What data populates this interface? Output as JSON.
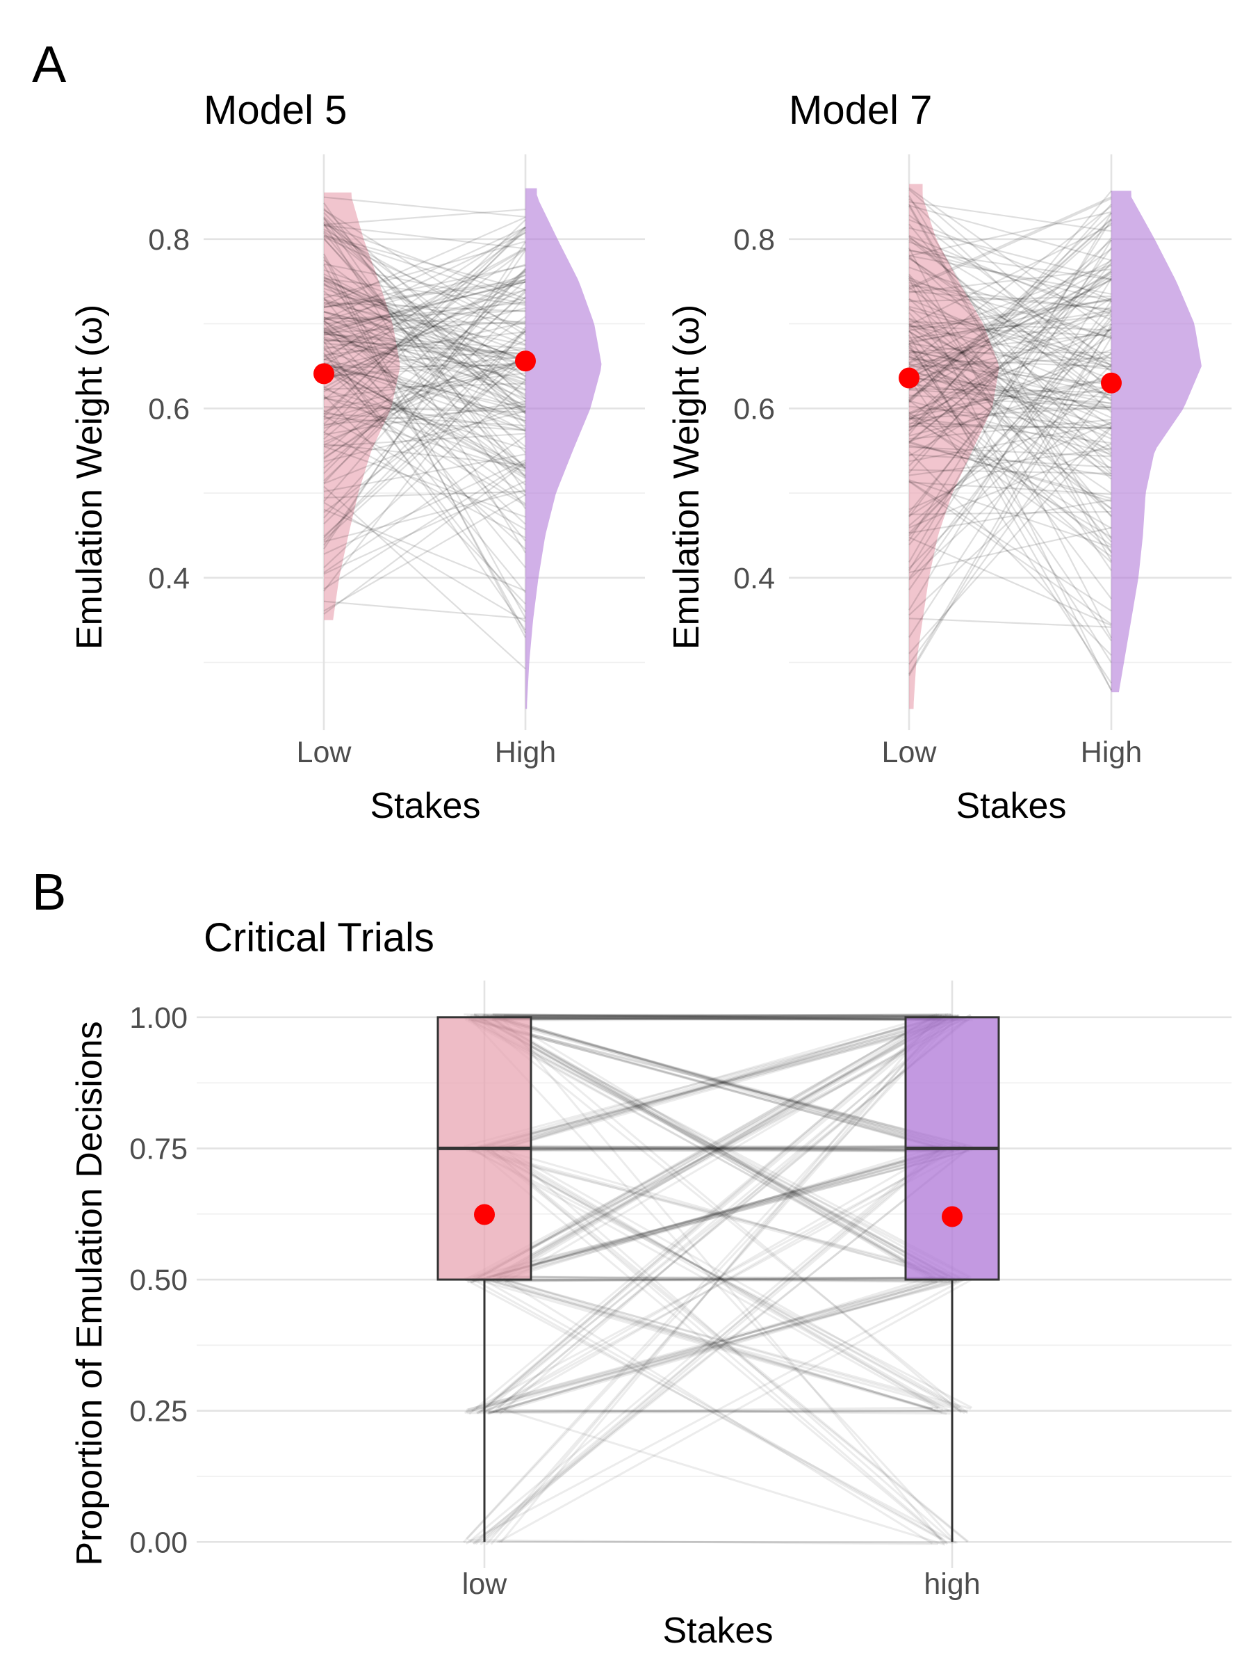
{
  "figure": {
    "panel_a_label": "A",
    "panel_b_label": "B"
  },
  "colors": {
    "low": "#e8a2b0",
    "high": "#b27cd9",
    "mean_point": "#ff0000",
    "lines": "#000000"
  },
  "chart_data": [
    {
      "type": "violin-paired",
      "title": "Model 5",
      "xlabel": "Stakes",
      "ylabel": "Emulation Weight (ω)",
      "categories": [
        "Low",
        "High"
      ],
      "yticks": [
        0.4,
        0.6,
        0.8
      ],
      "ylim": [
        0.22,
        0.9
      ],
      "means": [
        0.641,
        0.656
      ],
      "range": [
        [
          0.35,
          0.855
        ],
        [
          0.245,
          0.86
        ]
      ],
      "density": {
        "y": [
          0.25,
          0.3,
          0.35,
          0.4,
          0.45,
          0.5,
          0.55,
          0.6,
          0.65,
          0.7,
          0.75,
          0.8,
          0.85
        ],
        "Low": [
          0,
          0,
          0.12,
          0.2,
          0.32,
          0.45,
          0.62,
          0.88,
          1.0,
          0.9,
          0.72,
          0.52,
          0.36
        ],
        "High": [
          0.02,
          0.05,
          0.1,
          0.17,
          0.26,
          0.4,
          0.62,
          0.85,
          1.0,
          0.9,
          0.7,
          0.42,
          0.15
        ]
      },
      "n_pairs": 180
    },
    {
      "type": "violin-paired",
      "title": "Model 7",
      "xlabel": "Stakes",
      "ylabel": "Emulation Weight (ω)",
      "categories": [
        "Low",
        "High"
      ],
      "yticks": [
        0.4,
        0.6,
        0.8
      ],
      "ylim": [
        0.22,
        0.9
      ],
      "means": [
        0.636,
        0.63
      ],
      "range": [
        [
          0.245,
          0.865
        ],
        [
          0.265,
          0.857
        ]
      ],
      "density": {
        "y": [
          0.25,
          0.3,
          0.35,
          0.4,
          0.45,
          0.5,
          0.55,
          0.6,
          0.65,
          0.7,
          0.75,
          0.8,
          0.85
        ],
        "Low": [
          0.05,
          0.08,
          0.15,
          0.22,
          0.32,
          0.48,
          0.7,
          0.92,
          1.0,
          0.82,
          0.55,
          0.3,
          0.15
        ],
        "High": [
          0.06,
          0.14,
          0.22,
          0.3,
          0.35,
          0.38,
          0.48,
          0.8,
          1.0,
          0.92,
          0.72,
          0.48,
          0.22
        ]
      },
      "n_pairs": 180
    },
    {
      "type": "box-paired",
      "title": "Critical Trials",
      "xlabel": "Stakes",
      "ylabel": "Proportion of Emulation Decisions",
      "categories": [
        "low",
        "high"
      ],
      "yticks": [
        "0.00",
        "0.25",
        "0.50",
        "0.75",
        "1.00"
      ],
      "ylim": [
        -0.05,
        1.07
      ],
      "boxes": [
        {
          "category": "low",
          "min": 0.0,
          "q1": 0.5,
          "median": 0.75,
          "q3": 1.0,
          "max": 1.0,
          "mean": 0.624
        },
        {
          "category": "high",
          "min": 0.0,
          "q1": 0.5,
          "median": 0.75,
          "q3": 1.0,
          "max": 1.0,
          "mean": 0.62
        }
      ],
      "levels": [
        0.0,
        0.25,
        0.5,
        0.75,
        1.0
      ]
    }
  ]
}
